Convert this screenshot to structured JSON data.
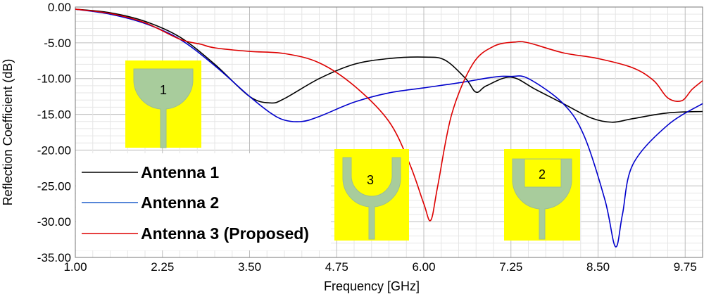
{
  "chart_data": {
    "type": "line",
    "title": "",
    "xlabel": "Frequency [GHz]",
    "ylabel": "Reflection Coefficient (dB)",
    "xlim": [
      1.0,
      10.0
    ],
    "ylim": [
      -35.0,
      0.0
    ],
    "x_ticks": [
      "1.00",
      "2.25",
      "3.50",
      "4.75",
      "6.00",
      "7.25",
      "8.50",
      "9.75"
    ],
    "y_ticks": [
      "0.00",
      "-5.00",
      "-10.00",
      "-15.00",
      "-20.00",
      "-25.00",
      "-30.00",
      "-35.00"
    ],
    "grid": true,
    "legend_position": "lower-left",
    "series": [
      {
        "name": "Antenna 1",
        "color": "#000000",
        "x": [
          1.0,
          1.5,
          2.0,
          2.5,
          3.0,
          3.5,
          3.8,
          4.0,
          4.5,
          5.0,
          5.5,
          6.0,
          6.3,
          6.6,
          6.75,
          6.9,
          7.25,
          7.6,
          8.0,
          8.4,
          8.7,
          9.0,
          9.5,
          10.0
        ],
        "y": [
          -0.3,
          -0.8,
          -2.0,
          -4.2,
          -8.0,
          -12.5,
          -13.4,
          -12.8,
          -10.0,
          -8.0,
          -7.2,
          -7.0,
          -7.4,
          -10.0,
          -11.9,
          -11.0,
          -9.8,
          -11.5,
          -13.5,
          -15.5,
          -16.1,
          -15.6,
          -14.8,
          -14.6
        ]
      },
      {
        "name": "Antenna 2",
        "color": "#0000cc",
        "x": [
          1.0,
          1.5,
          2.0,
          2.5,
          3.0,
          3.5,
          3.8,
          4.0,
          4.25,
          4.5,
          5.0,
          5.5,
          6.0,
          6.5,
          7.0,
          7.25,
          7.5,
          8.0,
          8.3,
          8.6,
          8.75,
          8.85,
          9.0,
          9.5,
          10.0
        ],
        "y": [
          -0.3,
          -1.0,
          -2.3,
          -4.5,
          -8.2,
          -12.5,
          -14.8,
          -15.8,
          -16.0,
          -15.3,
          -13.3,
          -12.0,
          -11.3,
          -10.6,
          -9.8,
          -9.7,
          -10.0,
          -13.5,
          -18.0,
          -27.0,
          -33.5,
          -29.0,
          -22.0,
          -16.5,
          -13.5
        ]
      },
      {
        "name": "Antenna 3 (Proposed)",
        "color": "#dd0000",
        "x": [
          1.0,
          1.5,
          2.0,
          2.5,
          2.8,
          3.0,
          3.5,
          4.0,
          4.5,
          5.0,
          5.5,
          5.8,
          6.0,
          6.1,
          6.2,
          6.4,
          6.7,
          7.0,
          7.3,
          7.5,
          8.0,
          8.5,
          9.0,
          9.3,
          9.5,
          9.7,
          9.85,
          10.0
        ],
        "y": [
          -0.3,
          -0.9,
          -2.2,
          -4.5,
          -5.2,
          -5.7,
          -6.2,
          -6.5,
          -7.8,
          -11.0,
          -16.0,
          -22.0,
          -27.5,
          -29.8,
          -25.0,
          -15.0,
          -8.0,
          -5.5,
          -4.9,
          -5.0,
          -6.4,
          -7.2,
          -8.5,
          -10.3,
          -12.7,
          -13.1,
          -11.5,
          -10.3
        ]
      }
    ],
    "legend_labels": [
      "Antenna 1",
      "Antenna 2",
      "Antenna 3 (Proposed)"
    ],
    "annotations": [
      "1",
      "3",
      "2"
    ]
  },
  "colors": {
    "inset_bg": "#ffff00",
    "inset_patch": "#a8cc9c",
    "grid": "#cfcfcf"
  }
}
